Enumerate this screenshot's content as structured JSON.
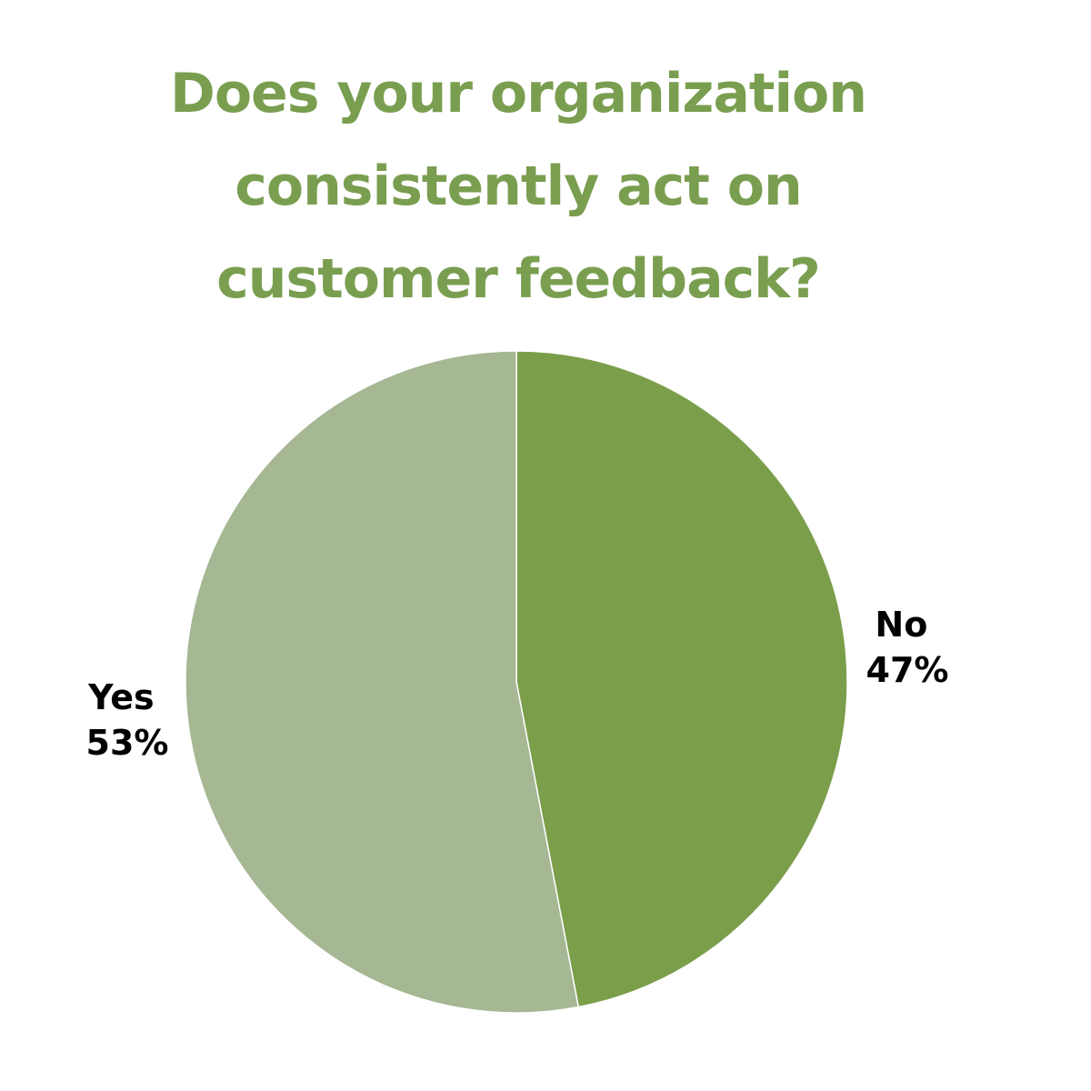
{
  "chart_data": {
    "type": "pie",
    "title_lines": [
      "Does your organization",
      "consistently act on",
      "customer feedback?"
    ],
    "slices": [
      {
        "label": "No",
        "percent_label": "47%",
        "value": 47,
        "color": "#7b9e4b"
      },
      {
        "label": "Yes",
        "percent_label": "53%",
        "value": 53,
        "color": "#a5b793"
      }
    ],
    "start_angle_deg": 0,
    "direction": "clockwise",
    "legend": "none",
    "title_color": "#7a9e50",
    "label_color": "#000000"
  }
}
